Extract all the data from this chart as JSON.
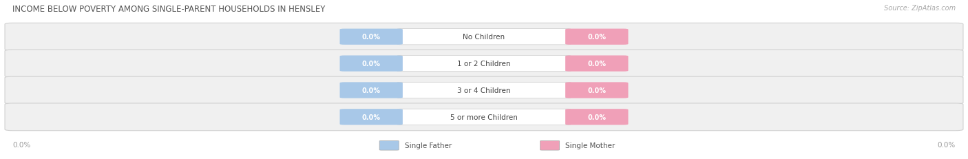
{
  "title": "INCOME BELOW POVERTY AMONG SINGLE-PARENT HOUSEHOLDS IN HENSLEY",
  "source": "Source: ZipAtlas.com",
  "categories": [
    "No Children",
    "1 or 2 Children",
    "3 or 4 Children",
    "5 or more Children"
  ],
  "father_values": [
    0.0,
    0.0,
    0.0,
    0.0
  ],
  "mother_values": [
    0.0,
    0.0,
    0.0,
    0.0
  ],
  "father_color": "#a8c8e8",
  "mother_color": "#f0a0b8",
  "row_bg_color": "#ebebeb",
  "row_border_color": "#d8d8d8",
  "title_color": "#555555",
  "axis_label_color": "#999999",
  "legend_father_label": "Single Father",
  "legend_mother_label": "Single Mother",
  "axis_tick_label": "0.0%",
  "figsize": [
    14.06,
    2.32
  ],
  "dpi": 100
}
